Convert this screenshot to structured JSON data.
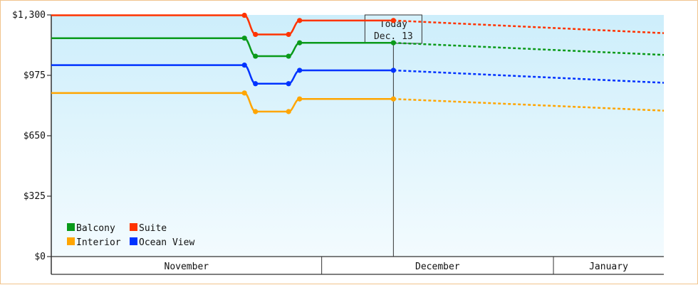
{
  "chart_data": {
    "type": "line",
    "y_ticks": [
      {
        "value": 0,
        "label": "$0"
      },
      {
        "value": 325,
        "label": "$325"
      },
      {
        "value": 650,
        "label": "$650"
      },
      {
        "value": 975,
        "label": "$975"
      },
      {
        "value": 1300,
        "label": "$1,300"
      }
    ],
    "ylim": [
      0,
      1300
    ],
    "x_range": [
      "2024-10-12",
      "2025-01-31"
    ],
    "months": [
      {
        "label": "November",
        "start": "2024-10-12",
        "end": "2024-11-30"
      },
      {
        "label": "December",
        "start": "2024-11-30",
        "end": "2025-01-11"
      },
      {
        "label": "January",
        "start": "2025-01-11",
        "end": "2025-01-31"
      }
    ],
    "today": {
      "date": "2024-12-13",
      "label_line1": "Today",
      "label_line2": "Dec. 13"
    },
    "series": [
      {
        "name": "Suite",
        "color": "#ff3300",
        "points": [
          [
            "2024-10-12",
            1298
          ],
          [
            "2024-11-16",
            1298
          ],
          [
            "2024-11-18",
            1195
          ],
          [
            "2024-11-24",
            1195
          ],
          [
            "2024-11-26",
            1270
          ],
          [
            "2024-12-13",
            1270
          ]
        ],
        "forecast": [
          [
            "2024-12-13",
            1270
          ],
          [
            "2025-01-31",
            1202
          ]
        ]
      },
      {
        "name": "Balcony",
        "color": "#0a9a1a",
        "points": [
          [
            "2024-10-12",
            1175
          ],
          [
            "2024-11-16",
            1175
          ],
          [
            "2024-11-18",
            1078
          ],
          [
            "2024-11-24",
            1078
          ],
          [
            "2024-11-26",
            1150
          ],
          [
            "2024-12-13",
            1150
          ]
        ],
        "forecast": [
          [
            "2024-12-13",
            1150
          ],
          [
            "2025-01-31",
            1085
          ]
        ]
      },
      {
        "name": "Ocean View",
        "color": "#0033ff",
        "points": [
          [
            "2024-10-12",
            1030
          ],
          [
            "2024-11-16",
            1030
          ],
          [
            "2024-11-18",
            930
          ],
          [
            "2024-11-24",
            930
          ],
          [
            "2024-11-26",
            1002
          ],
          [
            "2024-12-13",
            1002
          ]
        ],
        "forecast": [
          [
            "2024-12-13",
            1002
          ],
          [
            "2025-01-31",
            935
          ]
        ]
      },
      {
        "name": "Interior",
        "color": "#ffa500",
        "points": [
          [
            "2024-10-12",
            880
          ],
          [
            "2024-11-16",
            880
          ],
          [
            "2024-11-18",
            780
          ],
          [
            "2024-11-24",
            780
          ],
          [
            "2024-11-26",
            848
          ],
          [
            "2024-12-13",
            848
          ]
        ],
        "forecast": [
          [
            "2024-12-13",
            848
          ],
          [
            "2025-01-31",
            785
          ]
        ]
      }
    ],
    "legend": {
      "placement": "bottom-left",
      "items": [
        {
          "name": "Balcony",
          "color": "#0a9a1a"
        },
        {
          "name": "Suite",
          "color": "#ff3300"
        },
        {
          "name": "Interior",
          "color": "#ffa500"
        },
        {
          "name": "Ocean View",
          "color": "#0033ff"
        }
      ]
    },
    "colors": {
      "background_top": "#cdeefb",
      "background_bottom": "#f3fbfe",
      "frame_border": "#f1c48d",
      "axis": "#333333"
    }
  }
}
